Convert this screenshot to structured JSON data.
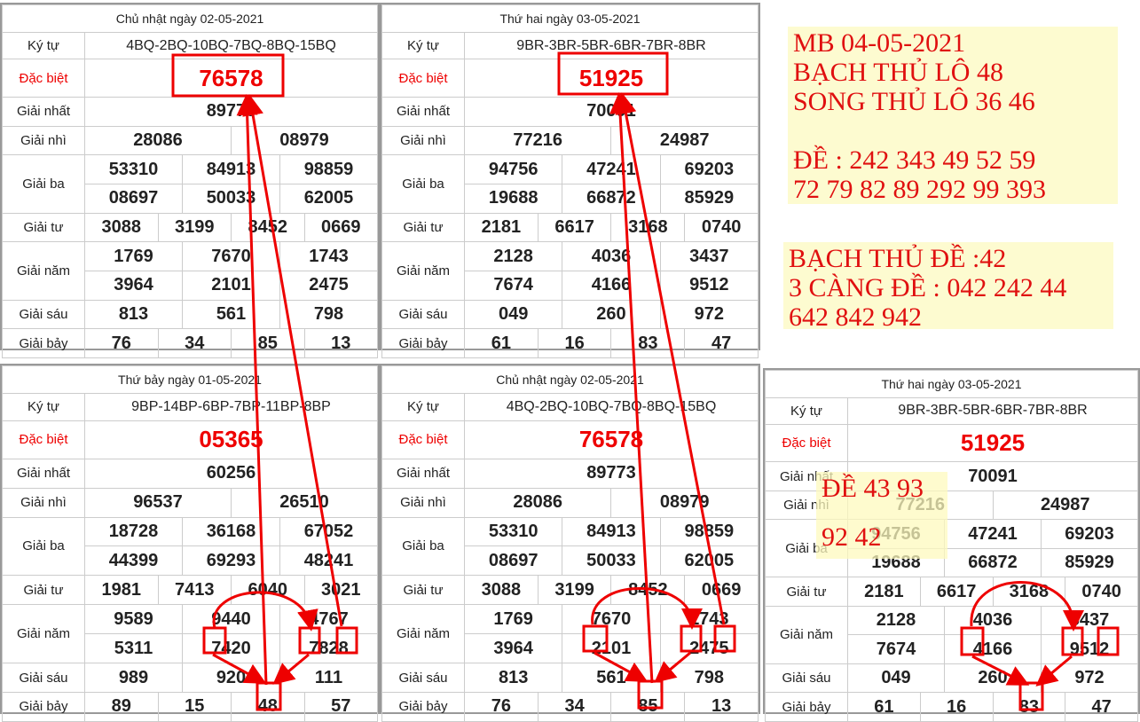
{
  "tables": [
    {
      "title": "Chủ nhật ngày 02-05-2021",
      "rows": [
        {
          "label": "Ký tự",
          "values": [
            "4BQ-2BQ-10BQ-7BQ-8BQ-15BQ"
          ]
        },
        {
          "label": "Đặc biệt",
          "values": [
            "76578"
          ]
        },
        {
          "label": "Giải nhất",
          "values": [
            "89773"
          ]
        },
        {
          "label": "Giải nhì",
          "values": [
            "28086",
            "08979"
          ]
        },
        {
          "label": "Giải ba",
          "values": [
            "53310",
            "84913",
            "98859",
            "08697",
            "50033",
            "62005"
          ]
        },
        {
          "label": "Giải tư",
          "values": [
            "3088",
            "3199",
            "8452",
            "0669"
          ]
        },
        {
          "label": "Giải năm",
          "values": [
            "1769",
            "7670",
            "1743",
            "3964",
            "2101",
            "2475"
          ]
        },
        {
          "label": "Giải sáu",
          "values": [
            "813",
            "561",
            "798"
          ]
        },
        {
          "label": "Giải bảy",
          "values": [
            "76",
            "34",
            "85",
            "13"
          ]
        }
      ]
    },
    {
      "title": "Thứ hai ngày 03-05-2021",
      "rows": [
        {
          "label": "Ký tự",
          "values": [
            "9BR-3BR-5BR-6BR-7BR-8BR"
          ]
        },
        {
          "label": "Đặc biệt",
          "values": [
            "51925"
          ]
        },
        {
          "label": "Giải nhất",
          "values": [
            "70091"
          ]
        },
        {
          "label": "Giải nhì",
          "values": [
            "77216",
            "24987"
          ]
        },
        {
          "label": "Giải ba",
          "values": [
            "94756",
            "47241",
            "69203",
            "19688",
            "66872",
            "85929"
          ]
        },
        {
          "label": "Giải tư",
          "values": [
            "2181",
            "6617",
            "3168",
            "0740"
          ]
        },
        {
          "label": "Giải năm",
          "values": [
            "2128",
            "4036",
            "3437",
            "7674",
            "4166",
            "9512"
          ]
        },
        {
          "label": "Giải sáu",
          "values": [
            "049",
            "260",
            "972"
          ]
        },
        {
          "label": "Giải bảy",
          "values": [
            "61",
            "16",
            "83",
            "47"
          ]
        }
      ]
    },
    {
      "title": "Thứ bảy ngày 01-05-2021",
      "rows": [
        {
          "label": "Ký tự",
          "values": [
            "9BP-14BP-6BP-7BP-11BP-8BP"
          ]
        },
        {
          "label": "Đặc biệt",
          "values": [
            "05365"
          ]
        },
        {
          "label": "Giải nhất",
          "values": [
            "60256"
          ]
        },
        {
          "label": "Giải nhì",
          "values": [
            "96537",
            "26510"
          ]
        },
        {
          "label": "Giải ba",
          "values": [
            "18728",
            "36168",
            "67052",
            "44399",
            "69293",
            "48241"
          ]
        },
        {
          "label": "Giải tư",
          "values": [
            "1981",
            "7413",
            "6040",
            "3021"
          ]
        },
        {
          "label": "Giải năm",
          "values": [
            "9589",
            "9440",
            "4767",
            "5311",
            "7420",
            "7828"
          ]
        },
        {
          "label": "Giải sáu",
          "values": [
            "989",
            "920",
            "111"
          ]
        },
        {
          "label": "Giải bảy",
          "values": [
            "89",
            "15",
            "48",
            "57"
          ]
        }
      ]
    },
    {
      "title": "Chủ nhật ngày 02-05-2021",
      "rows": [
        {
          "label": "Ký tự",
          "values": [
            "4BQ-2BQ-10BQ-7BQ-8BQ-15BQ"
          ]
        },
        {
          "label": "Đặc biệt",
          "values": [
            "76578"
          ]
        },
        {
          "label": "Giải nhất",
          "values": [
            "89773"
          ]
        },
        {
          "label": "Giải nhì",
          "values": [
            "28086",
            "08979"
          ]
        },
        {
          "label": "Giải ba",
          "values": [
            "53310",
            "84913",
            "98859",
            "08697",
            "50033",
            "62005"
          ]
        },
        {
          "label": "Giải tư",
          "values": [
            "3088",
            "3199",
            "8452",
            "0669"
          ]
        },
        {
          "label": "Giải năm",
          "values": [
            "1769",
            "7670",
            "1743",
            "3964",
            "2101",
            "2475"
          ]
        },
        {
          "label": "Giải sáu",
          "values": [
            "813",
            "561",
            "798"
          ]
        },
        {
          "label": "Giải bảy",
          "values": [
            "76",
            "34",
            "85",
            "13"
          ]
        }
      ]
    },
    {
      "title": "Thứ hai ngày 03-05-2021",
      "rows": [
        {
          "label": "Ký tự",
          "values": [
            "9BR-3BR-5BR-6BR-7BR-8BR"
          ]
        },
        {
          "label": "Đặc biệt",
          "values": [
            "51925"
          ]
        },
        {
          "label": "Giải nhất",
          "values": [
            "70091"
          ]
        },
        {
          "label": "Giải nhì",
          "values": [
            "77216",
            "24987"
          ]
        },
        {
          "label": "Giải ba",
          "values": [
            "94756",
            "47241",
            "69203",
            "19688",
            "66872",
            "85929"
          ]
        },
        {
          "label": "Giải tư",
          "values": [
            "2181",
            "6617",
            "3168",
            "0740"
          ]
        },
        {
          "label": "Giải năm",
          "values": [
            "2128",
            "4036",
            "3437",
            "7674",
            "4166",
            "9512"
          ]
        },
        {
          "label": "Giải sáu",
          "values": [
            "049",
            "260",
            "972"
          ]
        },
        {
          "label": "Giải bảy",
          "values": [
            "61",
            "16",
            "83",
            "47"
          ]
        }
      ]
    }
  ],
  "notes": [
    {
      "lines": [
        "MB 04-05-2021",
        "BẠCH THỦ LÔ 48",
        "SONG THỦ LÔ 36 46",
        "ĐỀ : 242 343 49 52 59",
        "72 79 82 89 292 99 393"
      ]
    },
    {
      "lines": [
        "BẠCH THỦ ĐỀ :42",
        "3 CÀNG ĐỀ : 042 242 44",
        "642 842 942"
      ]
    },
    {
      "lines": [
        "ĐỀ 43 93",
        "92 42"
      ]
    }
  ]
}
